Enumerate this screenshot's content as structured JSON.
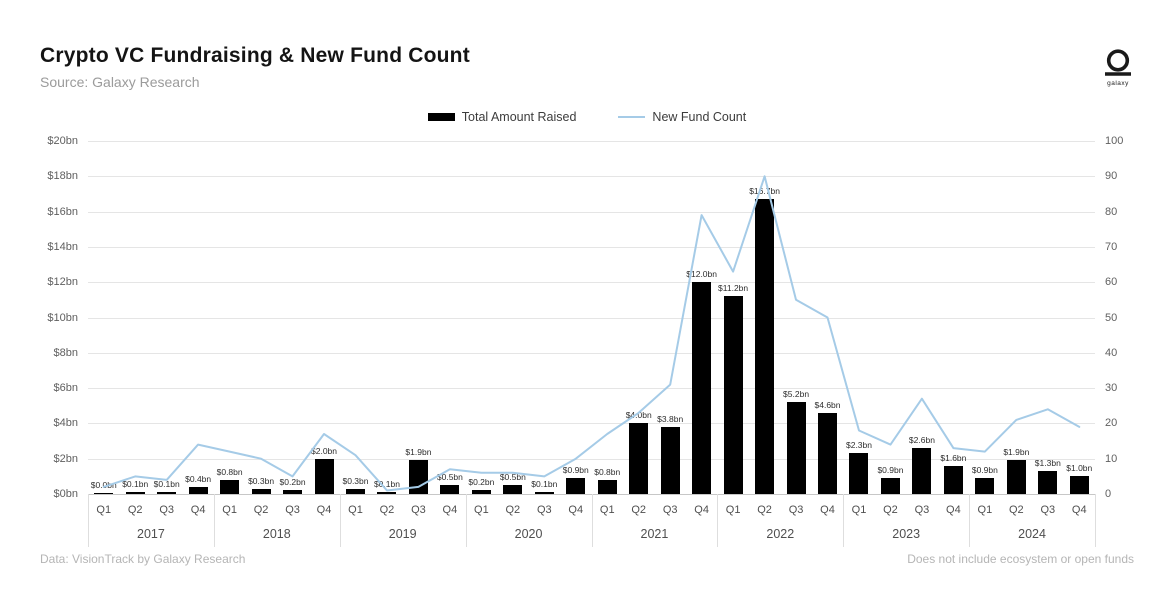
{
  "header": {
    "title": "Crypto VC Fundraising & New Fund Count",
    "subtitle": "Source: Galaxy Research"
  },
  "logo": {
    "label": "galaxy"
  },
  "footer": {
    "left": "Data: VisionTrack by Galaxy Research",
    "right": "Does not include ecosystem or open funds"
  },
  "chart_data": {
    "type": "bar+line",
    "title": "Crypto VC Fundraising & New Fund Count",
    "years": [
      "2017",
      "2018",
      "2019",
      "2020",
      "2021",
      "2022",
      "2023",
      "2024"
    ],
    "quarter_labels": [
      "Q1",
      "Q2",
      "Q3",
      "Q4"
    ],
    "series": [
      {
        "name": "Total Amount Raised",
        "type": "bar",
        "axis": "left",
        "color": "#000000",
        "unit": "USD billions",
        "values": [
          0.0,
          0.1,
          0.1,
          0.4,
          0.8,
          0.3,
          0.2,
          2.0,
          0.3,
          0.1,
          1.9,
          0.5,
          0.2,
          0.5,
          0.1,
          0.9,
          0.8,
          4.0,
          3.8,
          12.0,
          11.2,
          16.7,
          5.2,
          4.6,
          2.3,
          0.9,
          2.6,
          1.6,
          0.9,
          1.9,
          1.3,
          1.0
        ],
        "labels": [
          "$0.0bn",
          "$0.1bn",
          "$0.1bn",
          "$0.4bn",
          "$0.8bn",
          "$0.3bn",
          "$0.2bn",
          "$2.0bn",
          "$0.3bn",
          "$0.1bn",
          "$1.9bn",
          "$0.5bn",
          "$0.2bn",
          "$0.5bn",
          "$0.1bn",
          "$0.9bn",
          "$0.8bn",
          "$4.0bn",
          "$3.8bn",
          "$12.0bn",
          "$11.2bn",
          "$16.7bn",
          "$5.2bn",
          "$4.6bn",
          "$2.3bn",
          "$0.9bn",
          "$2.6bn",
          "$1.6bn",
          "$0.9bn",
          "$1.9bn",
          "$1.3bn",
          "$1.0bn"
        ]
      },
      {
        "name": "New Fund Count",
        "type": "line",
        "axis": "right",
        "color": "#a5cbe7",
        "values": [
          2,
          5,
          4,
          14,
          12,
          10,
          5,
          17,
          11,
          1,
          2,
          7,
          6,
          6,
          5,
          10,
          17,
          23,
          31,
          79,
          63,
          90,
          55,
          50,
          18,
          14,
          27,
          13,
          12,
          21,
          24,
          19
        ]
      }
    ],
    "left_axis": {
      "ticks": [
        "$20bn",
        "$18bn",
        "$16bn",
        "$14bn",
        "$12bn",
        "$10bn",
        "$8bn",
        "$6bn",
        "$4bn",
        "$2bn",
        "$0bn"
      ],
      "min": 0,
      "max": 20
    },
    "right_axis": {
      "ticks": [
        "100",
        "90",
        "80",
        "70",
        "60",
        "50",
        "40",
        "30",
        "20",
        "10",
        "0"
      ],
      "min": 0,
      "max": 100
    },
    "grid": true,
    "legend_position": "top"
  }
}
